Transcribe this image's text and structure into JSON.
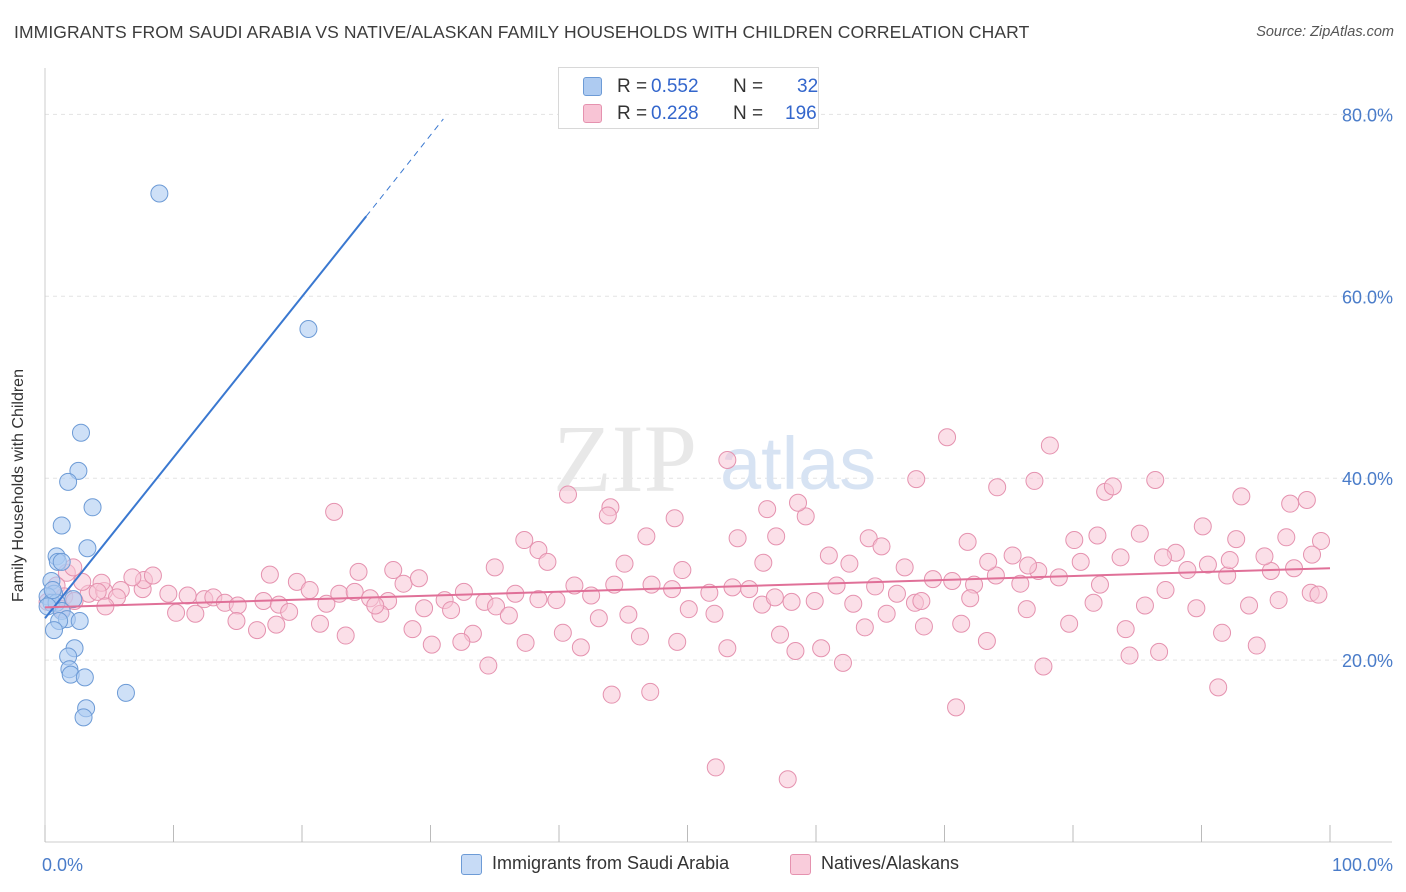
{
  "title": "IMMIGRANTS FROM SAUDI ARABIA VS NATIVE/ALASKAN FAMILY HOUSEHOLDS WITH CHILDREN CORRELATION CHART",
  "source": "Source: ZipAtlas.com",
  "watermark": {
    "zip": "ZIP",
    "atlas": "atlas"
  },
  "legend": {
    "r_label": "R =",
    "n_label": "N =",
    "rows": [
      {
        "r": "0.552",
        "n": "32",
        "color": "#aecbf1",
        "border": "#6d9bd6"
      },
      {
        "r": "0.228",
        "n": "196",
        "color": "#f8c4d5",
        "border": "#e592af"
      }
    ]
  },
  "bottom_legend": [
    {
      "label": "Immigrants from Saudi Arabia",
      "color": "#c7dbf6",
      "border": "#6d9bd6"
    },
    {
      "label": "Natives/Alaskans",
      "color": "#f9ccdb",
      "border": "#e592af"
    }
  ],
  "chart_data": {
    "type": "scatter",
    "title": "IMMIGRANTS FROM SAUDI ARABIA VS NATIVE/ALASKAN FAMILY HOUSEHOLDS WITH CHILDREN CORRELATION CHART",
    "xlabel": "",
    "ylabel": "Family Households with Children",
    "xlim": [
      0,
      100
    ],
    "ylim": [
      0,
      84
    ],
    "x_tick_labels": [
      {
        "value": 0,
        "label": "0.0%"
      },
      {
        "value": 100,
        "label": "100.0%"
      }
    ],
    "y_tick_labels": [
      {
        "value": 20,
        "label": "20.0%"
      },
      {
        "value": 40,
        "label": "40.0%"
      },
      {
        "value": 60,
        "label": "60.0%"
      },
      {
        "value": 80,
        "label": "80.0%"
      }
    ],
    "colors": {
      "blue": "#6d9bd6",
      "blue_fill": "#aecbf1",
      "blue_line": "#3a78d0",
      "pink": "#e592af",
      "pink_fill": "#f8c4d5",
      "pink_line": "#e07098",
      "tick_label": "#4a7cc9"
    },
    "series": [
      {
        "name": "Immigrants from Saudi Arabia",
        "points": [
          [
            8.9,
            71.3
          ],
          [
            20.5,
            56.4
          ],
          [
            2.8,
            45.0
          ],
          [
            2.6,
            40.8
          ],
          [
            1.8,
            39.6
          ],
          [
            3.7,
            36.8
          ],
          [
            1.3,
            34.8
          ],
          [
            3.3,
            32.3
          ],
          [
            0.9,
            31.4
          ],
          [
            1.0,
            30.8
          ],
          [
            1.3,
            30.8
          ],
          [
            0.5,
            28.7
          ],
          [
            0.7,
            27.3
          ],
          [
            0.2,
            27.0
          ],
          [
            2.2,
            26.7
          ],
          [
            0.5,
            26.3
          ],
          [
            0.9,
            26.3
          ],
          [
            0.2,
            25.9
          ],
          [
            1.3,
            25.4
          ],
          [
            1.7,
            24.5
          ],
          [
            1.1,
            24.3
          ],
          [
            2.7,
            24.3
          ],
          [
            0.7,
            23.3
          ],
          [
            2.3,
            21.3
          ],
          [
            1.8,
            20.4
          ],
          [
            1.9,
            19.0
          ],
          [
            2.0,
            18.4
          ],
          [
            3.1,
            18.1
          ],
          [
            6.3,
            16.4
          ],
          [
            3.2,
            14.7
          ],
          [
            3.0,
            13.7
          ],
          [
            0.6,
            27.7
          ]
        ],
        "trend": {
          "x": [
            0.0,
            25.0
          ],
          "y": [
            24.6,
            68.8
          ],
          "dash_x": [
            25.0,
            31.0
          ],
          "dash_y": [
            68.8,
            79.5
          ]
        }
      },
      {
        "name": "Natives/Alaskans",
        "points": [
          [
            1.7,
            29.6
          ],
          [
            2.2,
            30.2
          ],
          [
            0.9,
            28.2
          ],
          [
            1.5,
            27.0
          ],
          [
            3.4,
            27.3
          ],
          [
            4.6,
            27.6
          ],
          [
            5.9,
            27.7
          ],
          [
            7.6,
            27.8
          ],
          [
            5.6,
            26.9
          ],
          [
            4.4,
            28.5
          ],
          [
            2.9,
            28.6
          ],
          [
            7.7,
            28.8
          ],
          [
            0.2,
            26.4
          ],
          [
            1.3,
            25.6
          ],
          [
            4.1,
            27.5
          ],
          [
            8.4,
            29.3
          ],
          [
            9.6,
            27.3
          ],
          [
            11.1,
            27.1
          ],
          [
            12.4,
            26.7
          ],
          [
            13.1,
            26.9
          ],
          [
            14.0,
            26.3
          ],
          [
            15.0,
            26.0
          ],
          [
            17.0,
            26.5
          ],
          [
            18.2,
            26.1
          ],
          [
            19.6,
            28.6
          ],
          [
            20.6,
            27.7
          ],
          [
            21.9,
            26.2
          ],
          [
            22.9,
            27.3
          ],
          [
            24.1,
            27.5
          ],
          [
            25.3,
            26.8
          ],
          [
            26.7,
            26.5
          ],
          [
            27.9,
            28.4
          ],
          [
            29.5,
            25.7
          ],
          [
            31.1,
            26.6
          ],
          [
            32.6,
            27.5
          ],
          [
            34.2,
            26.4
          ],
          [
            35.1,
            25.9
          ],
          [
            36.6,
            27.3
          ],
          [
            38.4,
            26.7
          ],
          [
            39.8,
            26.6
          ],
          [
            41.2,
            28.2
          ],
          [
            42.5,
            27.1
          ],
          [
            44.3,
            28.3
          ],
          [
            45.4,
            25.0
          ],
          [
            47.2,
            28.3
          ],
          [
            48.8,
            27.8
          ],
          [
            50.1,
            25.6
          ],
          [
            51.7,
            27.4
          ],
          [
            53.5,
            28.0
          ],
          [
            54.8,
            27.8
          ],
          [
            55.8,
            26.1
          ],
          [
            56.8,
            26.9
          ],
          [
            58.1,
            26.4
          ],
          [
            59.9,
            26.5
          ],
          [
            61.6,
            28.2
          ],
          [
            62.9,
            26.2
          ],
          [
            64.6,
            28.1
          ],
          [
            66.3,
            27.3
          ],
          [
            67.7,
            26.3
          ],
          [
            69.1,
            28.9
          ],
          [
            70.6,
            28.7
          ],
          [
            72.3,
            28.3
          ],
          [
            74.0,
            29.3
          ],
          [
            75.9,
            28.4
          ],
          [
            77.3,
            29.8
          ],
          [
            78.9,
            29.1
          ],
          [
            80.6,
            30.8
          ],
          [
            82.1,
            28.3
          ],
          [
            83.7,
            31.3
          ],
          [
            85.6,
            26.0
          ],
          [
            87.2,
            27.7
          ],
          [
            88.9,
            29.9
          ],
          [
            90.5,
            30.5
          ],
          [
            92.0,
            29.3
          ],
          [
            93.7,
            26.0
          ],
          [
            95.4,
            29.8
          ],
          [
            97.2,
            30.1
          ],
          [
            98.5,
            27.4
          ],
          [
            6.8,
            29.1
          ],
          [
            10.2,
            25.2
          ],
          [
            16.5,
            23.3
          ],
          [
            19.0,
            25.3
          ],
          [
            21.4,
            24.0
          ],
          [
            23.4,
            22.7
          ],
          [
            26.1,
            25.1
          ],
          [
            28.6,
            23.4
          ],
          [
            30.1,
            21.7
          ],
          [
            33.3,
            22.9
          ],
          [
            36.1,
            24.9
          ],
          [
            37.4,
            21.9
          ],
          [
            40.3,
            23.0
          ],
          [
            43.1,
            24.6
          ],
          [
            46.3,
            22.6
          ],
          [
            49.2,
            22.0
          ],
          [
            52.1,
            25.1
          ],
          [
            57.2,
            22.8
          ],
          [
            60.4,
            21.3
          ],
          [
            63.8,
            23.6
          ],
          [
            65.5,
            25.1
          ],
          [
            68.4,
            23.7
          ],
          [
            71.3,
            24.0
          ],
          [
            73.3,
            22.1
          ],
          [
            76.4,
            25.6
          ],
          [
            79.7,
            24.0
          ],
          [
            81.6,
            26.3
          ],
          [
            84.1,
            23.4
          ],
          [
            86.7,
            20.9
          ],
          [
            89.6,
            25.7
          ],
          [
            91.6,
            23.0
          ],
          [
            94.3,
            21.6
          ],
          [
            96.0,
            26.6
          ],
          [
            99.1,
            27.2
          ],
          [
            2.3,
            26.5
          ],
          [
            4.7,
            25.9
          ],
          [
            11.7,
            25.1
          ],
          [
            14.9,
            24.3
          ],
          [
            18.0,
            23.9
          ],
          [
            25.7,
            26.0
          ],
          [
            31.6,
            25.5
          ],
          [
            41.7,
            21.4
          ],
          [
            53.1,
            21.3
          ],
          [
            62.1,
            19.7
          ],
          [
            77.7,
            19.3
          ],
          [
            84.4,
            20.5
          ],
          [
            91.3,
            17.0
          ],
          [
            44.1,
            16.2
          ],
          [
            47.1,
            16.5
          ],
          [
            58.4,
            21.0
          ],
          [
            70.9,
            14.8
          ],
          [
            52.2,
            8.2
          ],
          [
            57.8,
            6.9
          ],
          [
            32.4,
            22.0
          ],
          [
            34.5,
            19.4
          ],
          [
            22.5,
            36.3
          ],
          [
            37.3,
            33.2
          ],
          [
            40.7,
            38.2
          ],
          [
            46.8,
            33.6
          ],
          [
            53.9,
            33.4
          ],
          [
            56.9,
            33.6
          ],
          [
            59.2,
            35.8
          ],
          [
            64.1,
            33.4
          ],
          [
            67.8,
            39.9
          ],
          [
            70.2,
            44.5
          ],
          [
            74.1,
            39.0
          ],
          [
            77.0,
            39.7
          ],
          [
            82.5,
            38.5
          ],
          [
            83.1,
            39.1
          ],
          [
            86.4,
            39.8
          ],
          [
            93.1,
            38.0
          ],
          [
            96.9,
            37.2
          ],
          [
            98.2,
            37.6
          ],
          [
            53.1,
            42.0
          ],
          [
            78.2,
            43.6
          ],
          [
            44.0,
            36.8
          ],
          [
            49.0,
            35.6
          ],
          [
            56.2,
            36.6
          ],
          [
            58.6,
            37.3
          ],
          [
            65.1,
            32.5
          ],
          [
            71.8,
            33.0
          ],
          [
            75.3,
            31.5
          ],
          [
            80.1,
            33.2
          ],
          [
            85.2,
            33.9
          ],
          [
            88.0,
            31.8
          ],
          [
            90.1,
            34.7
          ],
          [
            92.7,
            33.3
          ],
          [
            94.9,
            31.4
          ],
          [
            96.6,
            33.5
          ],
          [
            99.3,
            33.1
          ],
          [
            38.4,
            32.1
          ],
          [
            43.8,
            35.9
          ],
          [
            17.5,
            29.4
          ],
          [
            24.4,
            29.7
          ],
          [
            27.1,
            29.9
          ],
          [
            29.1,
            29.0
          ],
          [
            35.0,
            30.2
          ],
          [
            39.1,
            30.8
          ],
          [
            45.1,
            30.6
          ],
          [
            49.6,
            29.9
          ],
          [
            55.9,
            30.7
          ],
          [
            61.0,
            31.5
          ],
          [
            66.9,
            30.2
          ],
          [
            73.4,
            30.8
          ],
          [
            76.5,
            30.4
          ],
          [
            81.9,
            33.7
          ],
          [
            87.0,
            31.3
          ],
          [
            92.2,
            31.0
          ],
          [
            98.6,
            31.6
          ],
          [
            62.6,
            30.6
          ],
          [
            68.2,
            26.5
          ],
          [
            72.0,
            26.8
          ]
        ],
        "trend": {
          "x": [
            0.0,
            100.0
          ],
          "y": [
            25.8,
            30.1
          ]
        }
      }
    ]
  }
}
